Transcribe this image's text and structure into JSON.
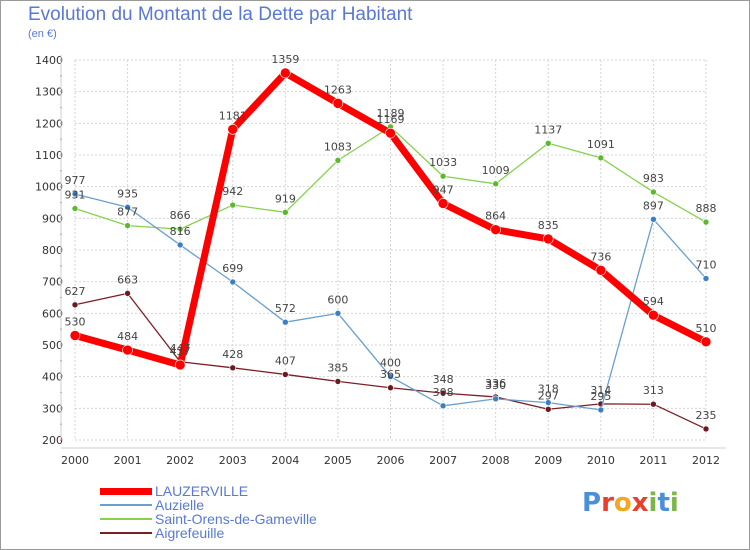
{
  "title": "Evolution du Montant de la Dette par Habitant",
  "unit": "(en €)",
  "logo": {
    "text": "Proxiti",
    "letters": [
      "P",
      "r",
      "o",
      "x",
      "i",
      "t",
      "i"
    ],
    "colors": [
      "#4a90d9",
      "#e8402a",
      "#f5a623",
      "#e8402a",
      "#7ab648",
      "#4a90d9",
      "#7ab648"
    ]
  },
  "chart_data": {
    "type": "line",
    "x": [
      "2000",
      "2001",
      "2002",
      "2003",
      "2004",
      "2005",
      "2006",
      "2007",
      "2008",
      "2009",
      "2010",
      "2011",
      "2012"
    ],
    "ylim": [
      200,
      1400
    ],
    "yticks": [
      200,
      300,
      400,
      500,
      600,
      700,
      800,
      900,
      1000,
      1100,
      1200,
      1300,
      1400
    ],
    "grid": true,
    "legend_position": "bottom-left",
    "series": [
      {
        "name": "LAUZERVILLE",
        "color": "#ff0000",
        "values": [
          530,
          484,
          437,
          1181,
          1359,
          1263,
          1169,
          947,
          864,
          835,
          736,
          594,
          510
        ]
      },
      {
        "name": "Auzielle",
        "color": "#6a9fd0",
        "values": [
          977,
          935,
          816,
          699,
          572,
          600,
          400,
          308,
          330,
          318,
          295,
          897,
          710
        ]
      },
      {
        "name": "Saint-Orens-de-Gameville",
        "color": "#86d14e",
        "values": [
          931,
          877,
          866,
          942,
          919,
          1083,
          1189,
          1033,
          1009,
          1137,
          1091,
          983,
          888
        ]
      },
      {
        "name": "Aigrefeuille",
        "color": "#7a1f25",
        "values": [
          627,
          663,
          447,
          428,
          407,
          385,
          365,
          348,
          336,
          297,
          314,
          313,
          235
        ]
      }
    ]
  }
}
